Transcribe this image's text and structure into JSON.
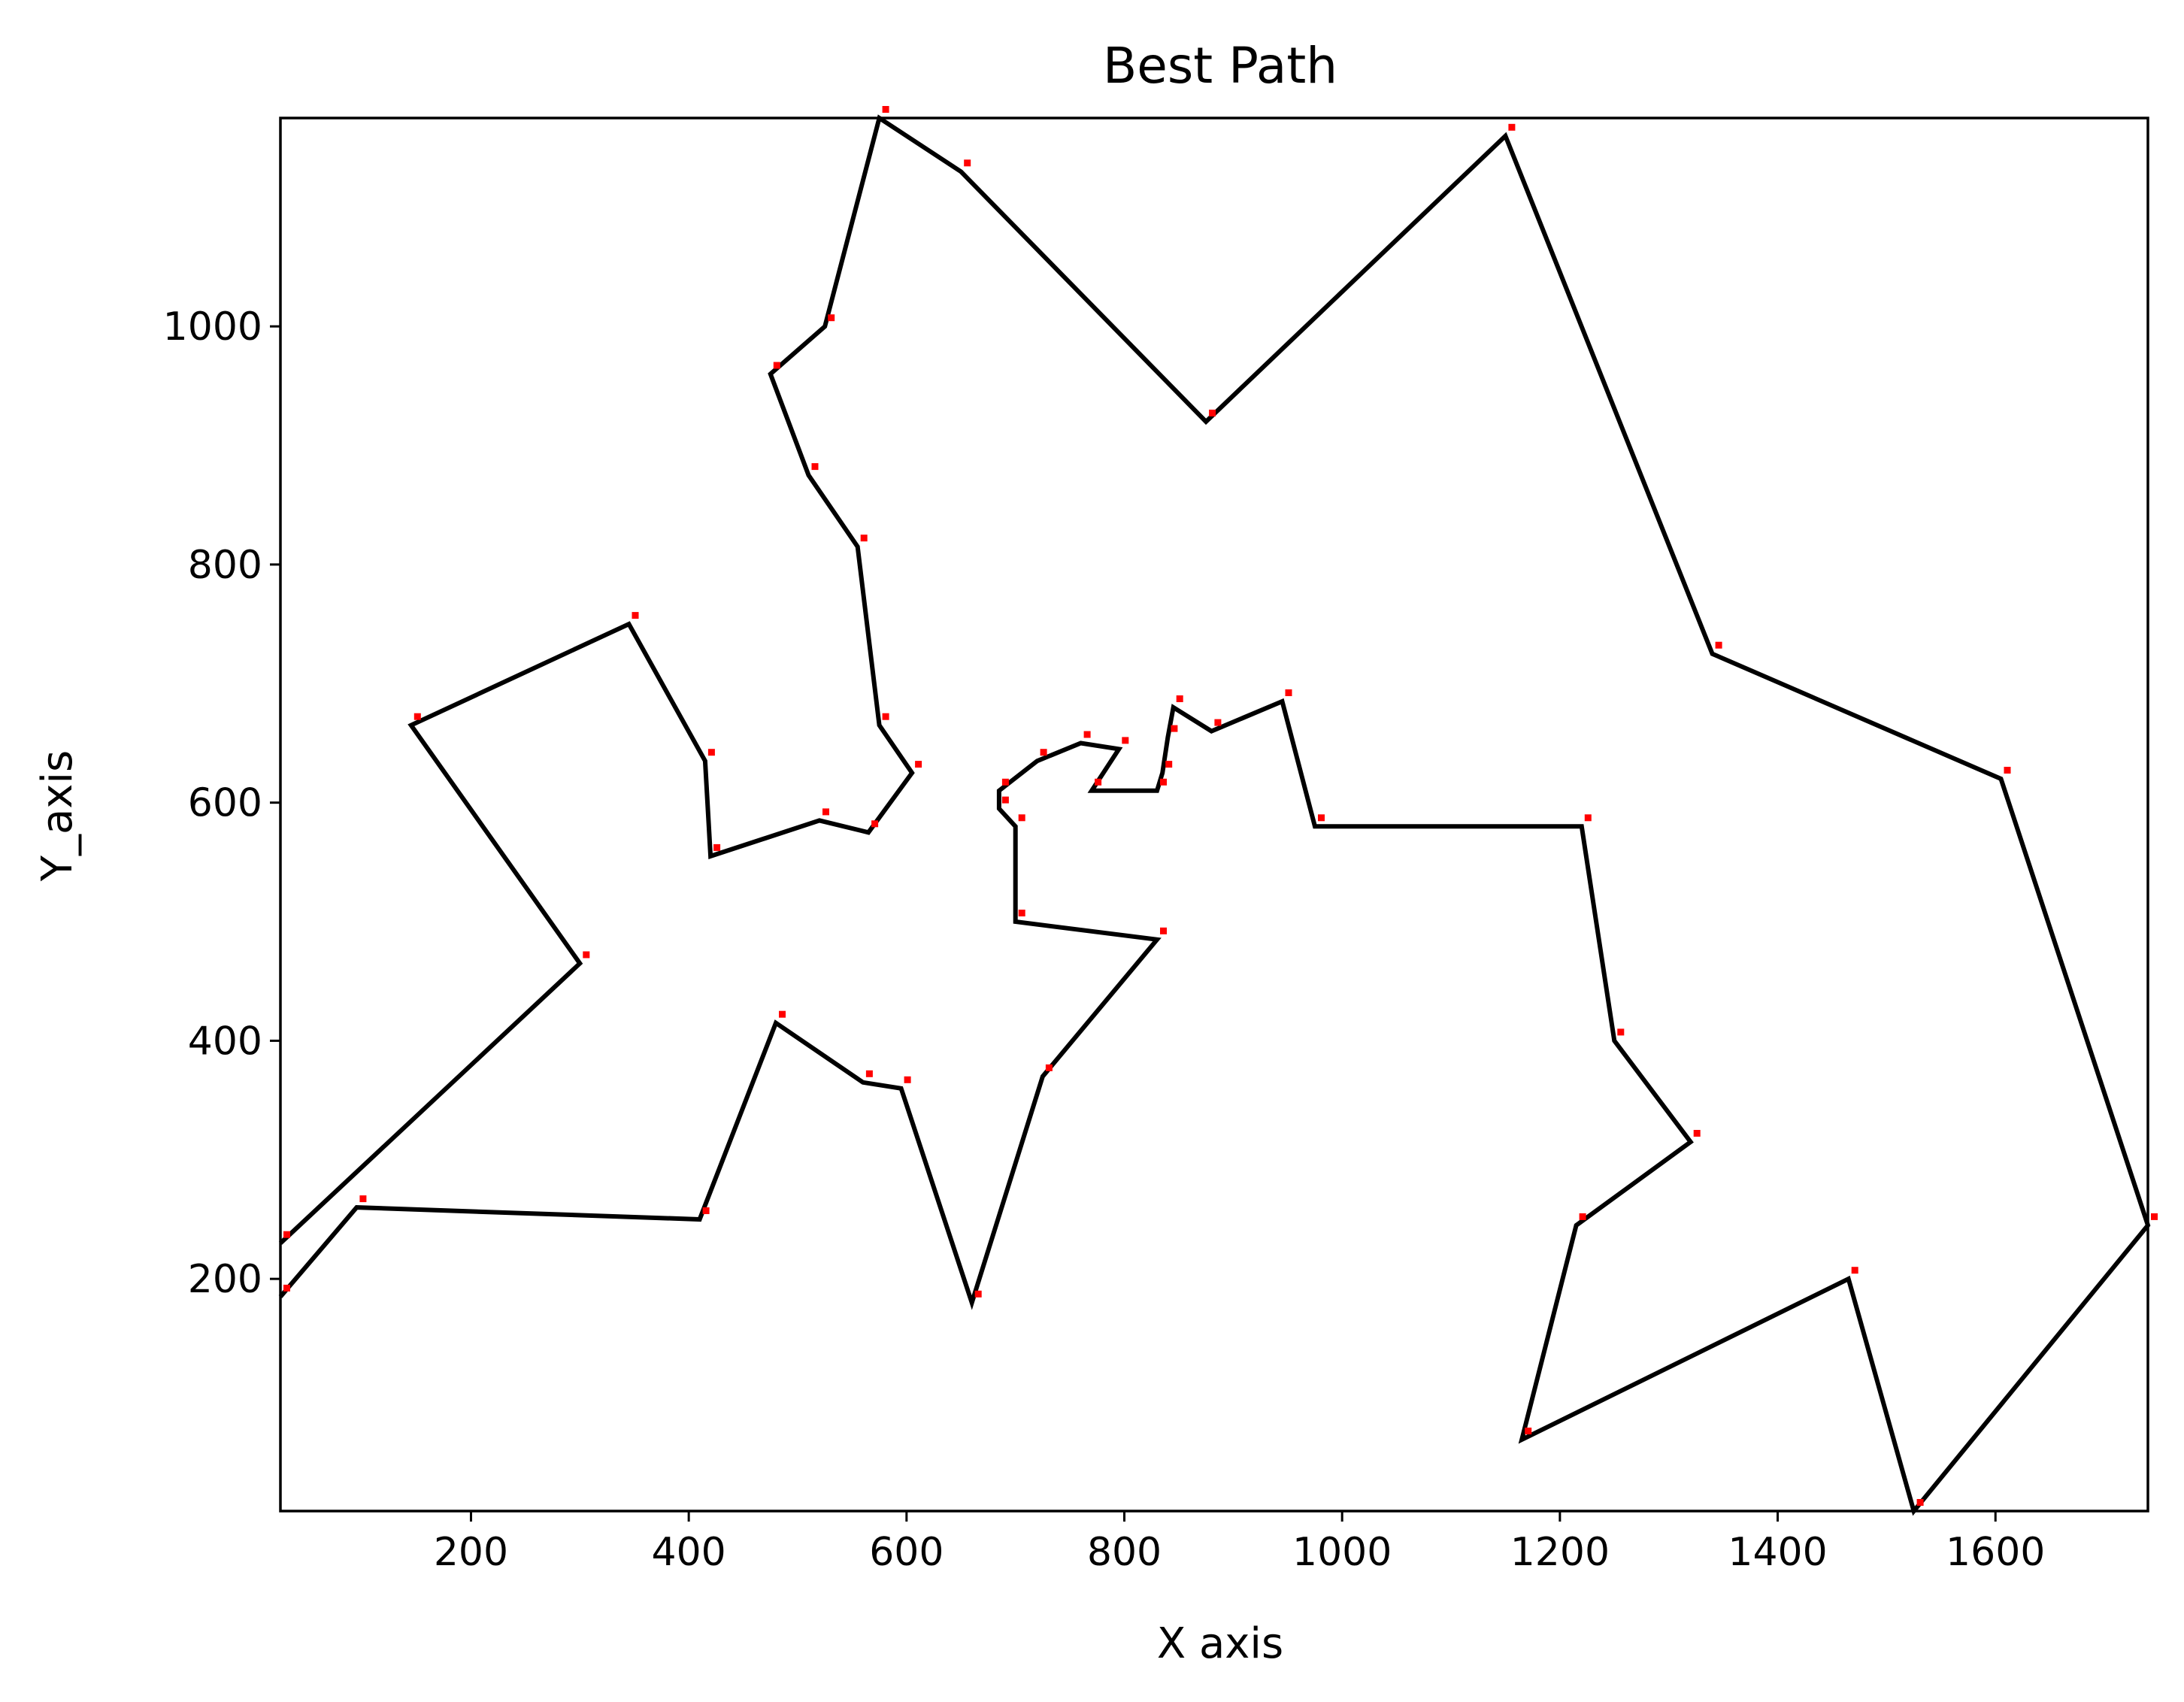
{
  "chart_data": {
    "type": "line",
    "title": "Best Path",
    "xlabel": "X axis",
    "ylabel": "Y_axis",
    "xlim": [
      25,
      1740
    ],
    "ylim": [
      5,
      1175
    ],
    "xticks": [
      200,
      400,
      600,
      800,
      1000,
      1200,
      1400,
      1600
    ],
    "yticks": [
      200,
      400,
      600,
      800,
      1000
    ],
    "grid": false,
    "colors": {
      "path": "#000000",
      "cities": "#ff0000"
    },
    "series": [
      {
        "x": [
          25,
          95,
          410,
          480,
          560,
          595,
          660,
          725,
          830,
          700,
          700,
          685,
          685,
          720,
          760,
          795,
          770,
          830,
          835,
          840,
          845,
          880,
          945,
          975,
          1220,
          1250,
          1320,
          1215,
          1165,
          1465,
          1525,
          1740,
          1605,
          1340,
          1150,
          875,
          650,
          575,
          525,
          475,
          510,
          555,
          575,
          605,
          565,
          520,
          420,
          415,
          345,
          145,
          300,
          25
        ],
        "y": [
          185,
          260,
          250,
          415,
          365,
          360,
          180,
          370,
          485,
          500,
          580,
          595,
          610,
          635,
          650,
          645,
          610,
          610,
          625,
          655,
          680,
          660,
          685,
          580,
          580,
          400,
          315,
          245,
          65,
          200,
          5,
          245,
          620,
          725,
          1160,
          920,
          1130,
          1175,
          1000,
          960,
          875,
          815,
          665,
          625,
          575,
          585,
          555,
          635,
          750,
          665,
          465,
          230
        ]
      }
    ]
  }
}
